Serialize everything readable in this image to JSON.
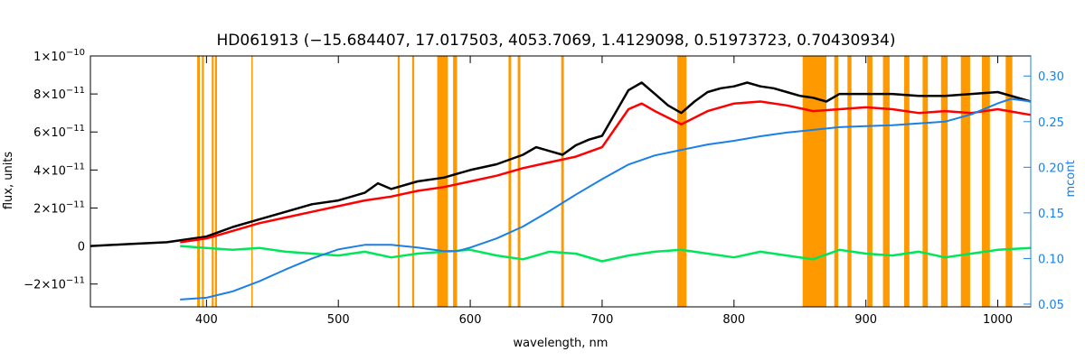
{
  "chart_data": {
    "type": "line",
    "title": "HD061913    (−15.684407, 17.017503, 4053.7069, 1.4129098, 0.51973723, 0.70430934)",
    "xlabel": "wavelength, nm",
    "ylabel": "flux, units",
    "y2label": "mcont",
    "xlim": [
      312,
      1025
    ],
    "ylim": [
      -3.2e-11,
      1e-10
    ],
    "y2lim": [
      0.047,
      0.322
    ],
    "grid": false,
    "x_ticks": [
      400,
      500,
      600,
      700,
      800,
      900,
      1000
    ],
    "x_tick_labels": [
      "400",
      "500",
      "600",
      "700",
      "800",
      "900",
      "1000"
    ],
    "y_ticks": [
      -2e-11,
      0,
      2e-11,
      4e-11,
      6e-11,
      8e-11,
      1e-10
    ],
    "y_tick_labels": [
      {
        "mant": "−2×10",
        "exp": "−11"
      },
      {
        "mant": "0",
        "exp": ""
      },
      {
        "mant": "2×10",
        "exp": "−11"
      },
      {
        "mant": "4×10",
        "exp": "−11"
      },
      {
        "mant": "6×10",
        "exp": "−11"
      },
      {
        "mant": "8×10",
        "exp": "−11"
      },
      {
        "mant": "1×10",
        "exp": "−10"
      }
    ],
    "y2_ticks": [
      0.05,
      0.1,
      0.15,
      0.2,
      0.25,
      0.3
    ],
    "y2_tick_labels": [
      "0.05",
      "0.10",
      "0.15",
      "0.20",
      "0.25",
      "0.30"
    ],
    "masked_bands": [
      [
        393,
        395
      ],
      [
        396.5,
        398
      ],
      [
        404,
        405.5
      ],
      [
        406.5,
        408
      ],
      [
        434,
        435
      ],
      [
        545,
        546.5
      ],
      [
        556,
        557.5
      ],
      [
        575,
        583
      ],
      [
        587,
        590
      ],
      [
        629,
        631
      ],
      [
        636,
        638
      ],
      [
        669,
        671
      ],
      [
        757,
        764
      ],
      [
        852,
        870
      ],
      [
        876,
        879
      ],
      [
        886,
        889
      ],
      [
        901,
        905
      ],
      [
        913,
        918
      ],
      [
        929,
        933
      ],
      [
        943,
        947
      ],
      [
        957,
        962
      ],
      [
        972,
        979
      ],
      [
        988,
        994
      ],
      [
        1006,
        1011
      ]
    ],
    "series": [
      {
        "color": "#000000",
        "x": [
          312,
          340,
          370,
          400,
          420,
          440,
          460,
          480,
          500,
          520,
          530,
          540,
          560,
          580,
          600,
          620,
          640,
          650,
          660,
          670,
          680,
          690,
          700,
          710,
          720,
          730,
          740,
          750,
          760,
          770,
          780,
          790,
          800,
          810,
          820,
          830,
          840,
          850,
          860,
          870,
          880,
          900,
          920,
          940,
          960,
          980,
          1000,
          1025
        ],
        "y": [
          0.0,
          1e-12,
          2e-12,
          5e-12,
          1e-11,
          1.4e-11,
          1.8e-11,
          2.2e-11,
          2.4e-11,
          2.8e-11,
          3.3e-11,
          3e-11,
          3.4e-11,
          3.6e-11,
          4e-11,
          4.3e-11,
          4.8e-11,
          5.2e-11,
          5e-11,
          4.8e-11,
          5.3e-11,
          5.6e-11,
          5.8e-11,
          7e-11,
          8.2e-11,
          8.6e-11,
          8e-11,
          7.4e-11,
          7e-11,
          7.6e-11,
          8.1e-11,
          8.3e-11,
          8.4e-11,
          8.6e-11,
          8.4e-11,
          8.3e-11,
          8.1e-11,
          7.9e-11,
          7.8e-11,
          7.6e-11,
          8e-11,
          8e-11,
          8e-11,
          7.9e-11,
          7.9e-11,
          8e-11,
          8.1e-11,
          7.6e-11
        ]
      },
      {
        "color": "#ff0000",
        "x": [
          380,
          400,
          420,
          440,
          460,
          480,
          500,
          520,
          540,
          560,
          580,
          600,
          620,
          640,
          660,
          680,
          700,
          710,
          720,
          730,
          740,
          760,
          780,
          800,
          820,
          840,
          860,
          880,
          900,
          920,
          940,
          960,
          980,
          1000,
          1025
        ],
        "y": [
          2e-12,
          4e-12,
          8e-12,
          1.2e-11,
          1.5e-11,
          1.8e-11,
          2.1e-11,
          2.4e-11,
          2.6e-11,
          2.9e-11,
          3.1e-11,
          3.4e-11,
          3.7e-11,
          4.1e-11,
          4.4e-11,
          4.7e-11,
          5.2e-11,
          6.2e-11,
          7.2e-11,
          7.5e-11,
          7.1e-11,
          6.4e-11,
          7.1e-11,
          7.5e-11,
          7.6e-11,
          7.4e-11,
          7.1e-11,
          7.2e-11,
          7.3e-11,
          7.2e-11,
          7e-11,
          7.1e-11,
          7e-11,
          7.2e-11,
          6.9e-11
        ]
      },
      {
        "color": "#00e65a",
        "x": [
          380,
          400,
          420,
          440,
          460,
          480,
          500,
          520,
          540,
          560,
          580,
          600,
          620,
          640,
          660,
          680,
          700,
          720,
          740,
          760,
          780,
          800,
          820,
          840,
          860,
          880,
          900,
          920,
          940,
          960,
          980,
          1000,
          1025
        ],
        "y": [
          0.0,
          -1e-12,
          -2e-12,
          -1e-12,
          -3e-12,
          -4e-12,
          -5e-12,
          -3e-12,
          -6e-12,
          -4e-12,
          -3e-12,
          -2e-12,
          -5e-12,
          -7e-12,
          -3e-12,
          -4e-12,
          -8e-12,
          -5e-12,
          -3e-12,
          -2e-12,
          -4e-12,
          -6e-12,
          -3e-12,
          -5e-12,
          -7e-12,
          -2e-12,
          -4e-12,
          -5e-12,
          -3e-12,
          -6e-12,
          -4e-12,
          -2e-12,
          -1e-12
        ]
      },
      {
        "color": "#1a80e6",
        "axis": "right",
        "x": [
          380,
          400,
          420,
          440,
          460,
          480,
          500,
          520,
          540,
          560,
          580,
          590,
          600,
          620,
          640,
          660,
          680,
          700,
          720,
          740,
          760,
          780,
          800,
          820,
          840,
          860,
          880,
          900,
          920,
          940,
          960,
          980,
          1000,
          1010,
          1025
        ],
        "y": [
          0.055,
          0.057,
          0.064,
          0.075,
          0.088,
          0.1,
          0.11,
          0.115,
          0.115,
          0.112,
          0.108,
          0.108,
          0.112,
          0.122,
          0.135,
          0.152,
          0.17,
          0.187,
          0.203,
          0.213,
          0.219,
          0.225,
          0.229,
          0.234,
          0.238,
          0.241,
          0.244,
          0.245,
          0.246,
          0.248,
          0.25,
          0.258,
          0.27,
          0.275,
          0.272
        ]
      }
    ]
  }
}
